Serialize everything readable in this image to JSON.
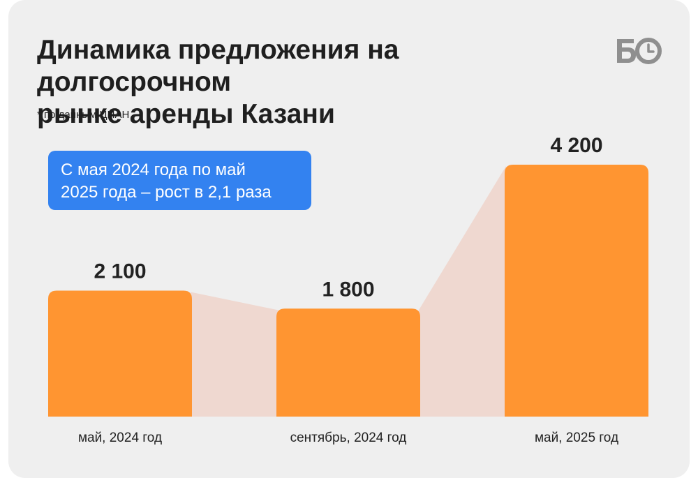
{
  "header": {
    "title_line1": "Динамика предложения на долгосрочном",
    "title_line2": "рынке аренды Казани",
    "source_note": "* по данным ЦИАН"
  },
  "logo": {
    "icon": "bo-logo-icon",
    "text": "БО"
  },
  "callout": {
    "line1": "С мая 2024 года по май",
    "line2": "2025 года – рост в 2,1 раза"
  },
  "colors": {
    "background": "#efefef",
    "bar": "#ff9531",
    "connector": "#efd8d0",
    "callout": "#3382f0",
    "text": "#1f1f1f"
  },
  "chart_data": {
    "type": "bar",
    "title": "Динамика предложения на долгосрочном рынке аренды Казани",
    "categories": [
      "май, 2024 год",
      "сентябрь, 2024 год",
      "май, 2025 год"
    ],
    "values": [
      2100,
      1800,
      4200
    ],
    "value_labels": [
      "2 100",
      "1 800",
      "4 200"
    ],
    "xlabel": "",
    "ylabel": "",
    "ylim": [
      0,
      4200
    ],
    "grid": false,
    "legend": "none"
  }
}
